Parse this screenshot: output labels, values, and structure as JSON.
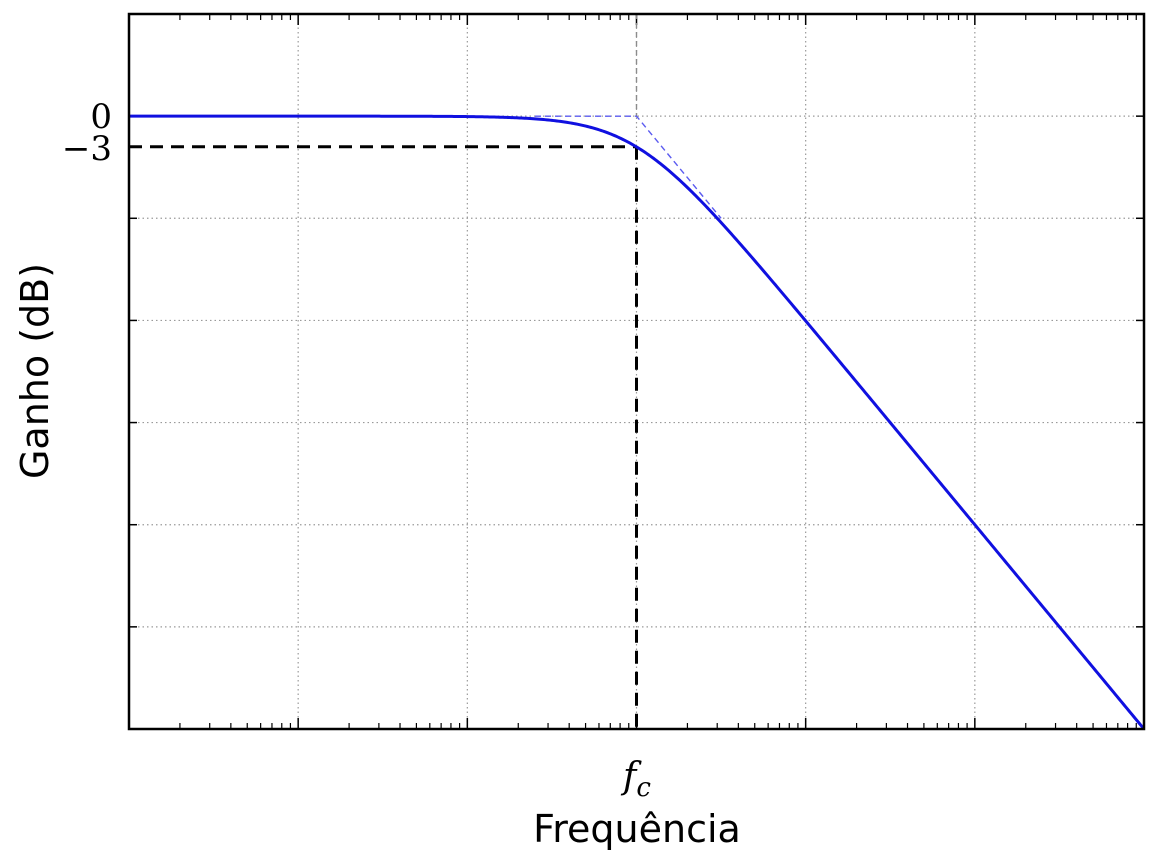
{
  "chart_data": {
    "type": "line",
    "title": "",
    "xlabel": "Frequência",
    "ylabel": "Ganho (dB)",
    "x_scale": "log",
    "x_tick_label": "f_c",
    "x_tick_label_main": "f",
    "x_tick_label_sub": "c",
    "x_range_decades": [
      -3,
      3
    ],
    "x_decade_ticks": [
      -3,
      -2,
      -1,
      0,
      1,
      2,
      3
    ],
    "ylim": [
      -60,
      10
    ],
    "y_gridlines": [
      -60,
      -50,
      -40,
      -30,
      -20,
      -10,
      0,
      10
    ],
    "y_tick_labels": [
      {
        "value": 0,
        "label": "0"
      },
      {
        "value": -3,
        "label": "−3"
      }
    ],
    "grid": true,
    "series": [
      {
        "role": "response",
        "style": "solid",
        "color": "#1010e0",
        "x_decades": [
          -3,
          -2.5,
          -2,
          -1.5,
          -1.25,
          -1,
          -0.75,
          -0.5,
          -0.25,
          0,
          0.25,
          0.5,
          0.75,
          1,
          1.5,
          2,
          2.5,
          3
        ],
        "y": [
          0,
          0,
          0,
          -0.004,
          -0.014,
          -0.04,
          -0.13,
          -0.41,
          -1.19,
          -3.01,
          -5.53,
          -10.3,
          -15.1,
          -20.04,
          -30.0,
          -40.0,
          -50.0,
          -60.0
        ]
      },
      {
        "role": "asymptote",
        "style": "dashed",
        "color": "#5b5bf0",
        "x_decades": [
          -0.6,
          0,
          0.5
        ],
        "y": [
          0,
          0,
          -10
        ]
      }
    ],
    "markers": {
      "cutoff_decade": 0,
      "cutoff_db": -3,
      "style": "dashed",
      "color": "#000000"
    }
  }
}
